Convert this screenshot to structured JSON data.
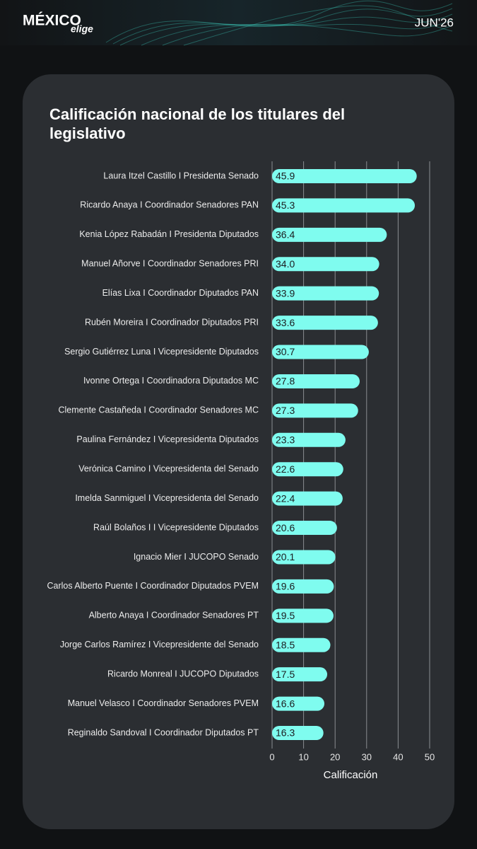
{
  "header": {
    "brand": "MÉXICO",
    "brand_sub": "elige",
    "date": "JUN'26"
  },
  "chart_data": {
    "type": "bar",
    "orientation": "horizontal",
    "title": "Calificación nacional de los titulares del legislativo",
    "x_label": "Calificación",
    "categories": [
      "Laura Itzel Castillo I Presidenta Senado",
      "Ricardo Anaya I Coordinador Senadores PAN",
      "Kenia López Rabadán I Presidenta Diputados",
      "Manuel Añorve I Coordinador Senadores PRI",
      "Elías Lixa I Coordinador Diputados PAN",
      "Rubén Moreira I Coordinador Diputados PRI",
      "Sergio Gutiérrez Luna I Vicepresidente Diputados",
      "Ivonne Ortega I Coordinadora Diputados MC",
      "Clemente Castañeda I Coordinador Senadores MC",
      "Paulina Fernández I Vicepresidenta Diputados",
      "Verónica Camino I Vicepresidenta del Senado",
      "Imelda Sanmiguel I Vicepresidenta del Senado",
      "Raúl Bolaños I I Vicepresidente Diputados",
      "Ignacio Mier I JUCOPO Senado",
      "Carlos Alberto Puente I Coordinador Diputados PVEM",
      "Alberto Anaya I Coordinador Senadores PT",
      "Jorge Carlos Ramírez I Vicepresidente del Senado",
      "Ricardo Monreal I JUCOPO Diputados",
      "Manuel Velasco I Coordinador Senadores PVEM",
      "Reginaldo Sandoval I Coordinador Diputados PT"
    ],
    "values": [
      45.9,
      45.3,
      36.4,
      34.0,
      33.9,
      33.6,
      30.7,
      27.8,
      27.3,
      23.3,
      22.6,
      22.4,
      20.6,
      20.1,
      19.6,
      19.5,
      18.5,
      17.5,
      16.6,
      16.3
    ],
    "value_labels": [
      "45.9",
      "45.3",
      "36.4",
      "34.0",
      "33.9",
      "33.6",
      "30.7",
      "27.8",
      "27.3",
      "23.3",
      "22.6",
      "22.4",
      "20.6",
      "20.1",
      "19.6",
      "19.5",
      "18.5",
      "17.5",
      "16.6",
      "16.3"
    ],
    "color": "#7ffcef",
    "xlim": [
      0,
      50
    ],
    "xticks": [
      0,
      10,
      20,
      30,
      40,
      50
    ],
    "grid": true
  }
}
